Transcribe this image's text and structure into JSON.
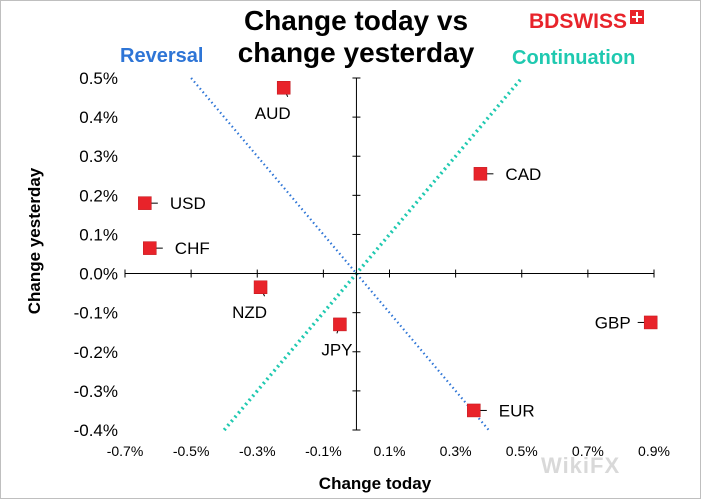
{
  "chart_data": {
    "type": "scatter",
    "title": "Change today vs change yesterday",
    "xlabel": "Change today",
    "ylabel": "Change yesterday",
    "xlim": [
      -0.7,
      0.9
    ],
    "ylim": [
      -0.4,
      0.5
    ],
    "x_ticks": [
      -0.7,
      -0.5,
      -0.3,
      -0.1,
      0.1,
      0.3,
      0.5,
      0.7,
      0.9
    ],
    "x_tick_labels": [
      "-0.7%",
      "-0.5%",
      "-0.3%",
      "-0.1%",
      "0.1%",
      "0.3%",
      "0.5%",
      "0.7%",
      "0.9%"
    ],
    "y_ticks": [
      -0.4,
      -0.3,
      -0.2,
      -0.1,
      0.0,
      0.1,
      0.2,
      0.3,
      0.4,
      0.5
    ],
    "y_tick_labels": [
      "-0.4%",
      "-0.3%",
      "-0.2%",
      "-0.1%",
      "0.0%",
      "0.1%",
      "0.2%",
      "0.3%",
      "0.4%",
      "0.5%"
    ],
    "points": [
      {
        "label": "AUD",
        "x": -0.22,
        "y": 0.475,
        "label_pos": "below"
      },
      {
        "label": "CAD",
        "x": 0.375,
        "y": 0.255,
        "label_pos": "right"
      },
      {
        "label": "USD",
        "x": -0.64,
        "y": 0.18,
        "label_pos": "right"
      },
      {
        "label": "CHF",
        "x": -0.625,
        "y": 0.065,
        "label_pos": "right"
      },
      {
        "label": "NZD",
        "x": -0.29,
        "y": -0.035,
        "label_pos": "below"
      },
      {
        "label": "JPY",
        "x": -0.05,
        "y": -0.13,
        "label_pos": "below"
      },
      {
        "label": "GBP",
        "x": 0.89,
        "y": -0.125,
        "label_pos": "left"
      },
      {
        "label": "EUR",
        "x": 0.355,
        "y": -0.35,
        "label_pos": "right"
      }
    ],
    "reference_lines": [
      {
        "name": "Reversal",
        "color": "#2e75d6",
        "x1": -0.5,
        "y1": 0.5,
        "x2": 0.4,
        "y2": -0.4
      },
      {
        "name": "Continuation",
        "color": "#1fc9b0",
        "x1": -0.4,
        "y1": -0.4,
        "x2": 0.5,
        "y2": 0.5
      }
    ],
    "marker_color": "#e8232a",
    "grid": false,
    "legend": "none"
  },
  "annotations": {
    "reversal": {
      "text": "Reversal",
      "color": "#2e75d6"
    },
    "continuation": {
      "text": "Continuation",
      "color": "#1fc9b0"
    }
  },
  "brand": {
    "logo_text": "BDSWISS",
    "logo_color": "#e8232a"
  },
  "watermark": "WikiFX"
}
